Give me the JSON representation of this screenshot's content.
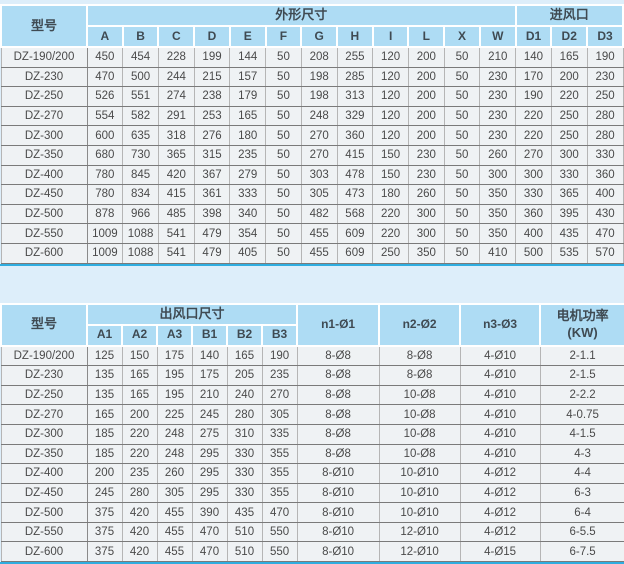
{
  "colors": {
    "page_background": "#ddeefa",
    "header_background": "#aedcf4",
    "cell_background": "#eff2f4",
    "row_border": "#7a7a7a",
    "column_border": "#b5b5b5",
    "accent_bottom_line": "#2fade0",
    "text": "#4a4a4a"
  },
  "table1": {
    "model_header": "型号",
    "group1_header": "外形尺寸",
    "group2_header": "进风口",
    "dim_cols": [
      "A",
      "B",
      "C",
      "D",
      "E",
      "F",
      "G",
      "H",
      "I",
      "L",
      "X",
      "W"
    ],
    "inlet_cols": [
      "D1",
      "D2",
      "D3"
    ],
    "rows": [
      {
        "model": "DZ-190/200",
        "values": [
          450,
          454,
          228,
          199,
          144,
          50,
          208,
          255,
          120,
          200,
          50,
          210,
          140,
          165,
          190
        ]
      },
      {
        "model": "DZ-230",
        "values": [
          470,
          500,
          244,
          215,
          157,
          50,
          198,
          285,
          120,
          200,
          50,
          230,
          170,
          200,
          230
        ]
      },
      {
        "model": "DZ-250",
        "values": [
          526,
          551,
          274,
          238,
          179,
          50,
          198,
          313,
          120,
          200,
          50,
          230,
          190,
          220,
          250
        ]
      },
      {
        "model": "DZ-270",
        "values": [
          554,
          582,
          291,
          253,
          165,
          50,
          248,
          329,
          120,
          200,
          50,
          230,
          220,
          250,
          280
        ]
      },
      {
        "model": "DZ-300",
        "values": [
          600,
          635,
          318,
          276,
          180,
          50,
          270,
          360,
          120,
          200,
          50,
          230,
          220,
          250,
          280
        ]
      },
      {
        "model": "DZ-350",
        "values": [
          680,
          730,
          365,
          315,
          235,
          50,
          270,
          415,
          150,
          230,
          50,
          260,
          270,
          300,
          330
        ]
      },
      {
        "model": "DZ-400",
        "values": [
          780,
          845,
          420,
          367,
          279,
          50,
          303,
          478,
          150,
          230,
          50,
          300,
          300,
          330,
          360
        ]
      },
      {
        "model": "DZ-450",
        "values": [
          780,
          834,
          415,
          361,
          333,
          50,
          305,
          473,
          180,
          260,
          50,
          350,
          330,
          365,
          400
        ]
      },
      {
        "model": "DZ-500",
        "values": [
          878,
          966,
          485,
          398,
          340,
          50,
          482,
          568,
          220,
          300,
          50,
          350,
          360,
          395,
          430
        ]
      },
      {
        "model": "DZ-550",
        "values": [
          1009,
          1088,
          541,
          479,
          354,
          50,
          455,
          609,
          220,
          300,
          50,
          350,
          400,
          435,
          470
        ]
      },
      {
        "model": "DZ-600",
        "values": [
          1009,
          1088,
          541,
          479,
          405,
          50,
          455,
          609,
          250,
          350,
          50,
          410,
          500,
          535,
          570
        ]
      }
    ]
  },
  "table2": {
    "model_header": "型号",
    "group1_header": "出风口尺寸",
    "outlet_cols": [
      "A1",
      "A2",
      "A3",
      "B1",
      "B2",
      "B3"
    ],
    "n1_header": "n1-Ø1",
    "n2_header": "n2-Ø2",
    "n3_header": "n3-Ø3",
    "power_header_line1": "电机功率",
    "power_header_line2": "(KW)",
    "rows": [
      {
        "model": "DZ-190/200",
        "values": [
          125,
          150,
          175,
          140,
          165,
          190
        ],
        "n1": "8-Ø8",
        "n2": "8-Ø8",
        "n3": "4-Ø10",
        "power": "2-1.1"
      },
      {
        "model": "DZ-230",
        "values": [
          135,
          165,
          195,
          175,
          205,
          235
        ],
        "n1": "8-Ø8",
        "n2": "8-Ø8",
        "n3": "4-Ø10",
        "power": "2-1.5"
      },
      {
        "model": "DZ-250",
        "values": [
          135,
          165,
          195,
          210,
          240,
          270
        ],
        "n1": "8-Ø8",
        "n2": "10-Ø8",
        "n3": "4-Ø10",
        "power": "2-2.2"
      },
      {
        "model": "DZ-270",
        "values": [
          165,
          200,
          225,
          245,
          280,
          305
        ],
        "n1": "8-Ø8",
        "n2": "10-Ø8",
        "n3": "4-Ø10",
        "power": "4-0.75"
      },
      {
        "model": "DZ-300",
        "values": [
          185,
          220,
          248,
          275,
          310,
          335
        ],
        "n1": "8-Ø8",
        "n2": "10-Ø8",
        "n3": "4-Ø10",
        "power": "4-1.5"
      },
      {
        "model": "DZ-350",
        "values": [
          185,
          220,
          248,
          295,
          330,
          355
        ],
        "n1": "8-Ø8",
        "n2": "10-Ø8",
        "n3": "4-Ø10",
        "power": "4-3"
      },
      {
        "model": "DZ-400",
        "values": [
          200,
          235,
          260,
          295,
          330,
          355
        ],
        "n1": "8-Ø10",
        "n2": "10-Ø10",
        "n3": "4-Ø12",
        "power": "4-4"
      },
      {
        "model": "DZ-450",
        "values": [
          245,
          280,
          305,
          295,
          330,
          355
        ],
        "n1": "8-Ø10",
        "n2": "10-Ø10",
        "n3": "4-Ø12",
        "power": "6-3"
      },
      {
        "model": "DZ-500",
        "values": [
          375,
          420,
          455,
          390,
          435,
          470
        ],
        "n1": "8-Ø10",
        "n2": "10-Ø10",
        "n3": "4-Ø12",
        "power": "6-4"
      },
      {
        "model": "DZ-550",
        "values": [
          375,
          420,
          455,
          470,
          510,
          550
        ],
        "n1": "8-Ø10",
        "n2": "12-Ø10",
        "n3": "4-Ø12",
        "power": "6-5.5"
      },
      {
        "model": "DZ-600",
        "values": [
          375,
          420,
          455,
          470,
          510,
          550
        ],
        "n1": "8-Ø10",
        "n2": "12-Ø10",
        "n3": "4-Ø15",
        "power": "6-7.5"
      }
    ]
  }
}
